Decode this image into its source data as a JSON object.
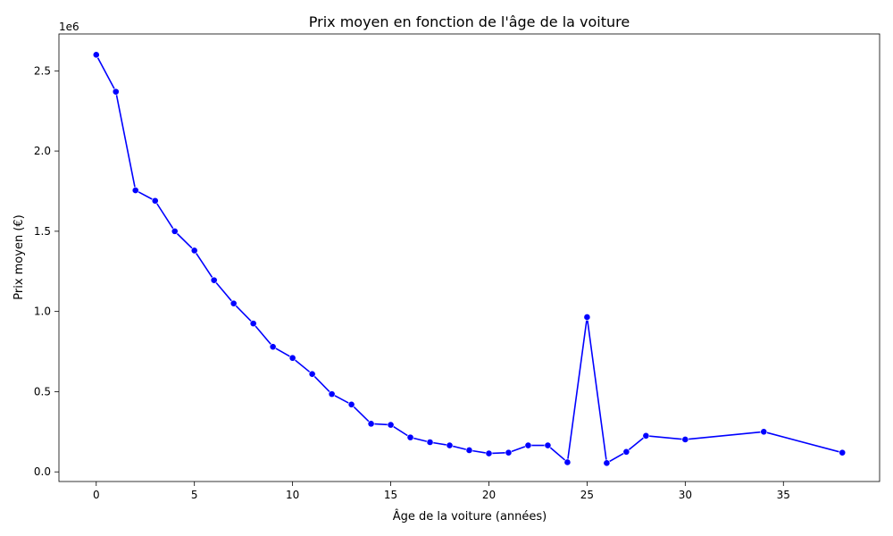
{
  "chart_data": {
    "type": "line",
    "title": "Prix moyen en fonction de l'âge de la voiture",
    "xlabel": "Âge de la voiture (années)",
    "ylabel": "Prix moyen (€)",
    "y_offset_label": "1e6",
    "xlim": [
      -1.9,
      39.9
    ],
    "ylim": [
      -60000,
      2730000
    ],
    "x_ticks": [
      0,
      5,
      10,
      15,
      20,
      25,
      30,
      35
    ],
    "y_ticks": [
      0,
      500000,
      1000000,
      1500000,
      2000000,
      2500000
    ],
    "y_tick_labels": [
      "0.0",
      "0.5",
      "1.0",
      "1.5",
      "2.0",
      "2.5"
    ],
    "grid": false,
    "series": [
      {
        "color": "#0000ff",
        "marker": "circle",
        "x": [
          0,
          1,
          2,
          3,
          4,
          5,
          6,
          7,
          8,
          9,
          10,
          11,
          12,
          13,
          14,
          15,
          16,
          17,
          18,
          19,
          20,
          21,
          22,
          23,
          24,
          25,
          26,
          27,
          28,
          30,
          34,
          38
        ],
        "y": [
          2600000,
          2370000,
          1755000,
          1690000,
          1500000,
          1380000,
          1195000,
          1050000,
          925000,
          780000,
          710000,
          610000,
          485000,
          420000,
          300000,
          293000,
          215000,
          185000,
          165000,
          135000,
          115000,
          120000,
          165000,
          165000,
          60000,
          965000,
          55000,
          125000,
          225000,
          202000,
          250000,
          120000
        ]
      }
    ]
  }
}
